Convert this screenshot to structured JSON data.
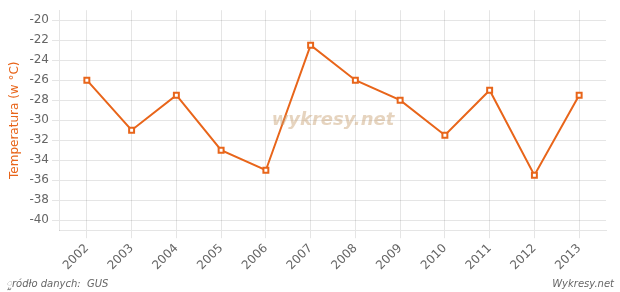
{
  "chart_data": {
    "type": "line",
    "ylabel": "Temperatura (w °C)",
    "annotations": [
      "wykresy.net",
      "ួródło danych:  GUS",
      "Wykresy.net"
    ],
    "x": [
      2002,
      2003,
      2004,
      2005,
      2006,
      2007,
      2008,
      2009,
      2010,
      2011,
      2012,
      2013
    ],
    "values": [
      -26,
      -31,
      -27.5,
      -33,
      -35,
      -22.5,
      -26,
      -28,
      -31.5,
      -27,
      -35.5,
      -27.5
    ],
    "color": "#e8651a",
    "marker": "square",
    "xlim": [
      2001.4,
      2013.6
    ],
    "xticks": [
      2002,
      2003,
      2004,
      2005,
      2006,
      2007,
      2008,
      2009,
      2010,
      2011,
      2012,
      2013
    ],
    "ylim": [
      -41,
      -19
    ],
    "yticks": [
      -40,
      -38,
      -36,
      -34,
      -32,
      -30,
      -28,
      -26,
      -24,
      -22,
      -20
    ],
    "grid": true
  }
}
